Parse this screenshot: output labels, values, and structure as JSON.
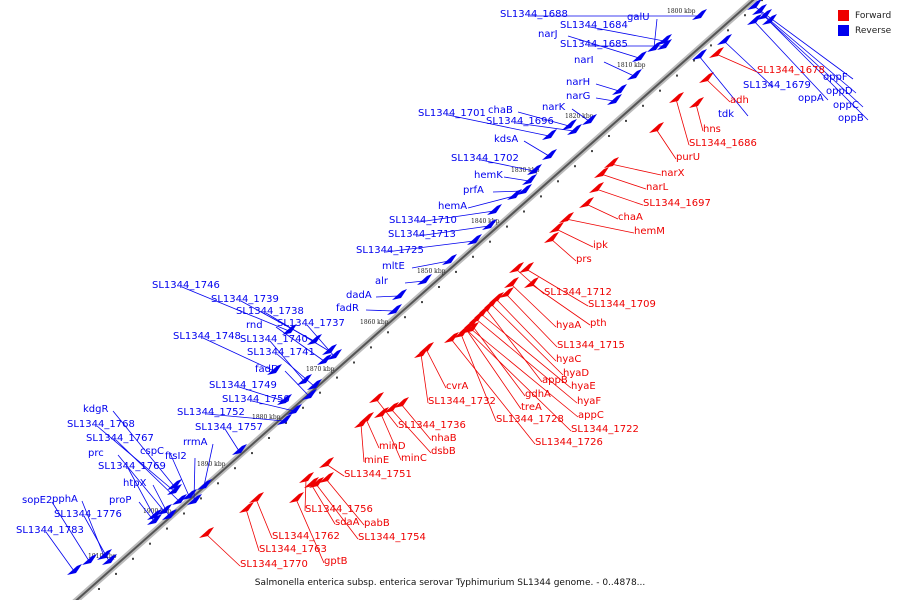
{
  "legend": {
    "forward": {
      "label": "Forward",
      "color": "#ee0000"
    },
    "reverse": {
      "label": "Reverse",
      "color": "#0000ee"
    }
  },
  "caption": "Salmonella enterica subsp. enterica serovar Typhimurium SL1344 genome. - 0..4878...",
  "ticks": [
    "1800 kbp",
    "1810 kbp",
    "1820 kbp",
    "1830 kbp",
    "1840 kbp",
    "1850 kbp",
    "1860 kbp",
    "1870 kbp",
    "1880 kbp",
    "1890 kbp",
    "1900 kbp",
    "1910 kbp"
  ],
  "reverse_labels": [
    "SL1344_1688",
    "galU",
    "narJ",
    "SL1344_1684",
    "SL1344_1685",
    "narI",
    "narH",
    "narG",
    "narK",
    "SL1344_1701",
    "chaB",
    "SL1344_1696",
    "kdsA",
    "SL1344_1702",
    "hemK",
    "prfA",
    "hemA",
    "SL1344_1710",
    "SL1344_1713",
    "SL1344_1725",
    "mltE",
    "alr",
    "dadA",
    "fadR",
    "SL1344_1746",
    "SL1344_1739",
    "SL1344_1738",
    "rnd",
    "SL1344_1737",
    "SL1344_1748",
    "SL1344_1740",
    "SL1344_1741",
    "fadD",
    "SL1344_1749",
    "SL1344_1750",
    "SL1344_1752",
    "SL1344_1757",
    "kdgR",
    "SL1344_1768",
    "SL1344_1767",
    "rrmA",
    "prc",
    "cspC",
    "ftsI2",
    "SL1344_1769",
    "htpX",
    "sopE2",
    "pphA",
    "proP",
    "SL1344_1776",
    "SL1344_1783",
    "tdk",
    "SL1344_1679",
    "oppF",
    "oppD",
    "oppA",
    "oppC",
    "oppB"
  ],
  "forward_labels": [
    "SL1344_1678",
    "adh",
    "hns",
    "SL1344_1686",
    "purU",
    "narX",
    "narL",
    "SL1344_1697",
    "chaA",
    "hemM",
    "ipk",
    "prs",
    "SL1344_1712",
    "SL1344_1709",
    "hyaA",
    "pth",
    "SL1344_1715",
    "hyaC",
    "hyaD",
    "appB",
    "hyaE",
    "cvrA",
    "hyaF",
    "SL1344_1732",
    "gdhA",
    "treA",
    "appC",
    "SL1344_1728",
    "SL1344_1722",
    "SL1344_1726",
    "SL1344_1736",
    "nhaB",
    "dsbB",
    "minD",
    "minC",
    "minE",
    "SL1344_1751",
    "SL1344_1756",
    "pabB",
    "sdaA",
    "SL1344_1754",
    "SL1344_1762",
    "SL1344_1763",
    "gptB",
    "SL1344_1770"
  ]
}
